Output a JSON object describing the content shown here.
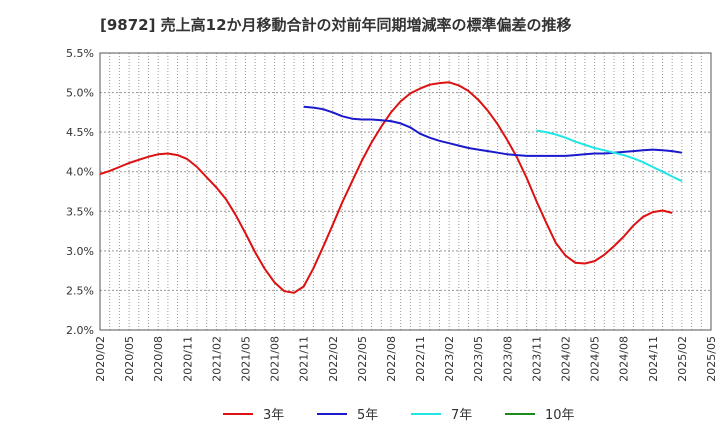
{
  "chart_data": {
    "type": "line",
    "title": "[9872]  売上高12か月移動合計の対前年同期増減率の標準偏差の推移",
    "xlabel": "",
    "ylabel": "",
    "ylim": [
      2.0,
      5.5
    ],
    "y_ticks": [
      "2.0%",
      "2.5%",
      "3.0%",
      "3.5%",
      "4.0%",
      "4.5%",
      "5.0%",
      "5.5%"
    ],
    "x_ticks": [
      "2020/02",
      "2020/05",
      "2020/08",
      "2020/11",
      "2021/02",
      "2021/05",
      "2021/08",
      "2021/11",
      "2022/02",
      "2022/05",
      "2022/08",
      "2022/11",
      "2023/02",
      "2023/05",
      "2023/08",
      "2023/11",
      "2024/02",
      "2024/05",
      "2024/08",
      "2024/11",
      "2025/02",
      "2025/05"
    ],
    "grid": true,
    "legend_position": "bottom",
    "series": [
      {
        "name": "3年",
        "color": "#dd1111",
        "points": [
          [
            "2020/02",
            3.97
          ],
          [
            "2020/03",
            4.01
          ],
          [
            "2020/04",
            4.06
          ],
          [
            "2020/05",
            4.11
          ],
          [
            "2020/06",
            4.15
          ],
          [
            "2020/07",
            4.19
          ],
          [
            "2020/08",
            4.22
          ],
          [
            "2020/09",
            4.23
          ],
          [
            "2020/10",
            4.21
          ],
          [
            "2020/11",
            4.16
          ],
          [
            "2020/12",
            4.06
          ],
          [
            "2021/01",
            3.93
          ],
          [
            "2021/02",
            3.8
          ],
          [
            "2021/03",
            3.65
          ],
          [
            "2021/04",
            3.45
          ],
          [
            "2021/05",
            3.22
          ],
          [
            "2021/06",
            2.98
          ],
          [
            "2021/07",
            2.77
          ],
          [
            "2021/08",
            2.6
          ],
          [
            "2021/09",
            2.49
          ],
          [
            "2021/10",
            2.47
          ],
          [
            "2021/11",
            2.55
          ],
          [
            "2021/12",
            2.78
          ],
          [
            "2022/01",
            3.05
          ],
          [
            "2022/02",
            3.33
          ],
          [
            "2022/03",
            3.62
          ],
          [
            "2022/04",
            3.88
          ],
          [
            "2022/05",
            4.14
          ],
          [
            "2022/06",
            4.37
          ],
          [
            "2022/07",
            4.57
          ],
          [
            "2022/08",
            4.75
          ],
          [
            "2022/09",
            4.89
          ],
          [
            "2022/10",
            4.99
          ],
          [
            "2022/11",
            5.05
          ],
          [
            "2022/12",
            5.1
          ],
          [
            "2023/01",
            5.12
          ],
          [
            "2023/02",
            5.13
          ],
          [
            "2023/03",
            5.09
          ],
          [
            "2023/04",
            5.02
          ],
          [
            "2023/05",
            4.91
          ],
          [
            "2023/06",
            4.77
          ],
          [
            "2023/07",
            4.6
          ],
          [
            "2023/08",
            4.4
          ],
          [
            "2023/09",
            4.18
          ],
          [
            "2023/10",
            3.92
          ],
          [
            "2023/11",
            3.63
          ],
          [
            "2023/12",
            3.36
          ],
          [
            "2024/01",
            3.1
          ],
          [
            "2024/02",
            2.94
          ],
          [
            "2024/03",
            2.85
          ],
          [
            "2024/04",
            2.84
          ],
          [
            "2024/05",
            2.87
          ],
          [
            "2024/06",
            2.95
          ],
          [
            "2024/07",
            3.06
          ],
          [
            "2024/08",
            3.18
          ],
          [
            "2024/09",
            3.32
          ],
          [
            "2024/10",
            3.43
          ],
          [
            "2024/11",
            3.49
          ],
          [
            "2024/12",
            3.51
          ],
          [
            "2025/01",
            3.48
          ]
        ]
      },
      {
        "name": "5年",
        "color": "#1a1acc",
        "points": [
          [
            "2021/11",
            4.82
          ],
          [
            "2021/12",
            4.81
          ],
          [
            "2022/01",
            4.79
          ],
          [
            "2022/02",
            4.75
          ],
          [
            "2022/03",
            4.7
          ],
          [
            "2022/04",
            4.67
          ],
          [
            "2022/05",
            4.66
          ],
          [
            "2022/06",
            4.66
          ],
          [
            "2022/07",
            4.65
          ],
          [
            "2022/08",
            4.64
          ],
          [
            "2022/09",
            4.61
          ],
          [
            "2022/10",
            4.56
          ],
          [
            "2022/11",
            4.48
          ],
          [
            "2022/12",
            4.43
          ],
          [
            "2023/01",
            4.39
          ],
          [
            "2023/02",
            4.36
          ],
          [
            "2023/03",
            4.33
          ],
          [
            "2023/04",
            4.3
          ],
          [
            "2023/05",
            4.28
          ],
          [
            "2023/06",
            4.26
          ],
          [
            "2023/07",
            4.24
          ],
          [
            "2023/08",
            4.22
          ],
          [
            "2023/09",
            4.21
          ],
          [
            "2023/10",
            4.2
          ],
          [
            "2023/11",
            4.2
          ],
          [
            "2023/12",
            4.2
          ],
          [
            "2024/01",
            4.2
          ],
          [
            "2024/02",
            4.2
          ],
          [
            "2024/03",
            4.21
          ],
          [
            "2024/04",
            4.22
          ],
          [
            "2024/05",
            4.23
          ],
          [
            "2024/06",
            4.23
          ],
          [
            "2024/07",
            4.24
          ],
          [
            "2024/08",
            4.25
          ],
          [
            "2024/09",
            4.26
          ],
          [
            "2024/10",
            4.27
          ],
          [
            "2024/11",
            4.28
          ],
          [
            "2024/12",
            4.27
          ],
          [
            "2025/01",
            4.26
          ],
          [
            "2025/02",
            4.24
          ]
        ]
      },
      {
        "name": "7年",
        "color": "#22e6e6",
        "points": [
          [
            "2023/11",
            4.52
          ],
          [
            "2023/12",
            4.5
          ],
          [
            "2024/01",
            4.47
          ],
          [
            "2024/02",
            4.43
          ],
          [
            "2024/03",
            4.38
          ],
          [
            "2024/04",
            4.34
          ],
          [
            "2024/05",
            4.3
          ],
          [
            "2024/06",
            4.27
          ],
          [
            "2024/07",
            4.24
          ],
          [
            "2024/08",
            4.21
          ],
          [
            "2024/09",
            4.17
          ],
          [
            "2024/10",
            4.12
          ],
          [
            "2024/11",
            4.06
          ],
          [
            "2024/12",
            4.0
          ],
          [
            "2025/01",
            3.94
          ],
          [
            "2025/02",
            3.88
          ]
        ]
      },
      {
        "name": "10年",
        "color": "#1e8a1e",
        "points": []
      }
    ]
  }
}
